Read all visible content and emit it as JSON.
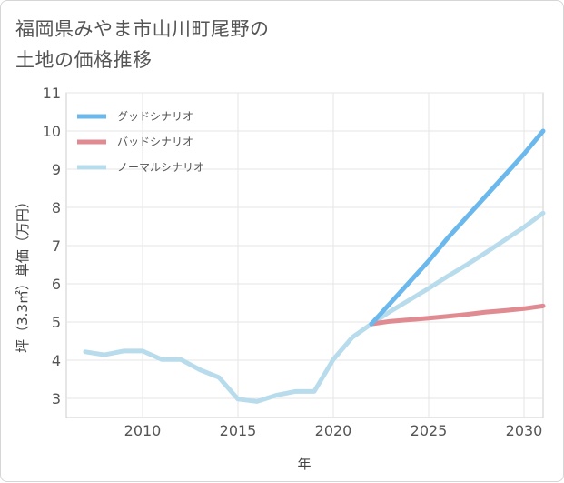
{
  "title": "福岡県みやま市山川町尾野の\n土地の価格推移",
  "chart_data": {
    "type": "line",
    "title": "福岡県みやま市山川町尾野の土地の価格推移",
    "xlabel": "年",
    "ylabel": "坪（3.3㎡）単価（万円）",
    "xlim": [
      2006,
      2031
    ],
    "ylim": [
      2.5,
      11
    ],
    "xticks": [
      2010,
      2015,
      2020,
      2025,
      2030
    ],
    "yticks": [
      3,
      4,
      5,
      6,
      7,
      8,
      9,
      10,
      11
    ],
    "grid": true,
    "legend_position": "top-left",
    "series": [
      {
        "name": "グッドシナリオ",
        "color": "#6bb8ec",
        "x": [
          2022,
          2023,
          2024,
          2025,
          2026,
          2027,
          2028,
          2029,
          2030,
          2031
        ],
        "values": [
          4.95,
          5.5,
          6.05,
          6.6,
          7.2,
          7.75,
          8.3,
          8.85,
          9.4,
          10.0
        ]
      },
      {
        "name": "バッドシナリオ",
        "color": "#e08a92",
        "x": [
          2022,
          2023,
          2024,
          2025,
          2026,
          2027,
          2028,
          2029,
          2030,
          2031
        ],
        "values": [
          4.95,
          5.02,
          5.06,
          5.1,
          5.15,
          5.2,
          5.26,
          5.3,
          5.35,
          5.42
        ]
      },
      {
        "name": "ノーマルシナリオ",
        "color": "#b8dcec",
        "x": [
          2007,
          2008,
          2009,
          2010,
          2011,
          2012,
          2013,
          2014,
          2015,
          2016,
          2017,
          2018,
          2019,
          2020,
          2021,
          2022,
          2023,
          2024,
          2025,
          2026,
          2027,
          2028,
          2029,
          2030,
          2031
        ],
        "values": [
          4.22,
          4.14,
          4.24,
          4.24,
          4.02,
          4.02,
          3.75,
          3.55,
          2.98,
          2.92,
          3.08,
          3.18,
          3.18,
          4.02,
          4.6,
          4.95,
          5.28,
          5.58,
          5.88,
          6.2,
          6.5,
          6.82,
          7.15,
          7.48,
          7.85
        ]
      }
    ]
  }
}
